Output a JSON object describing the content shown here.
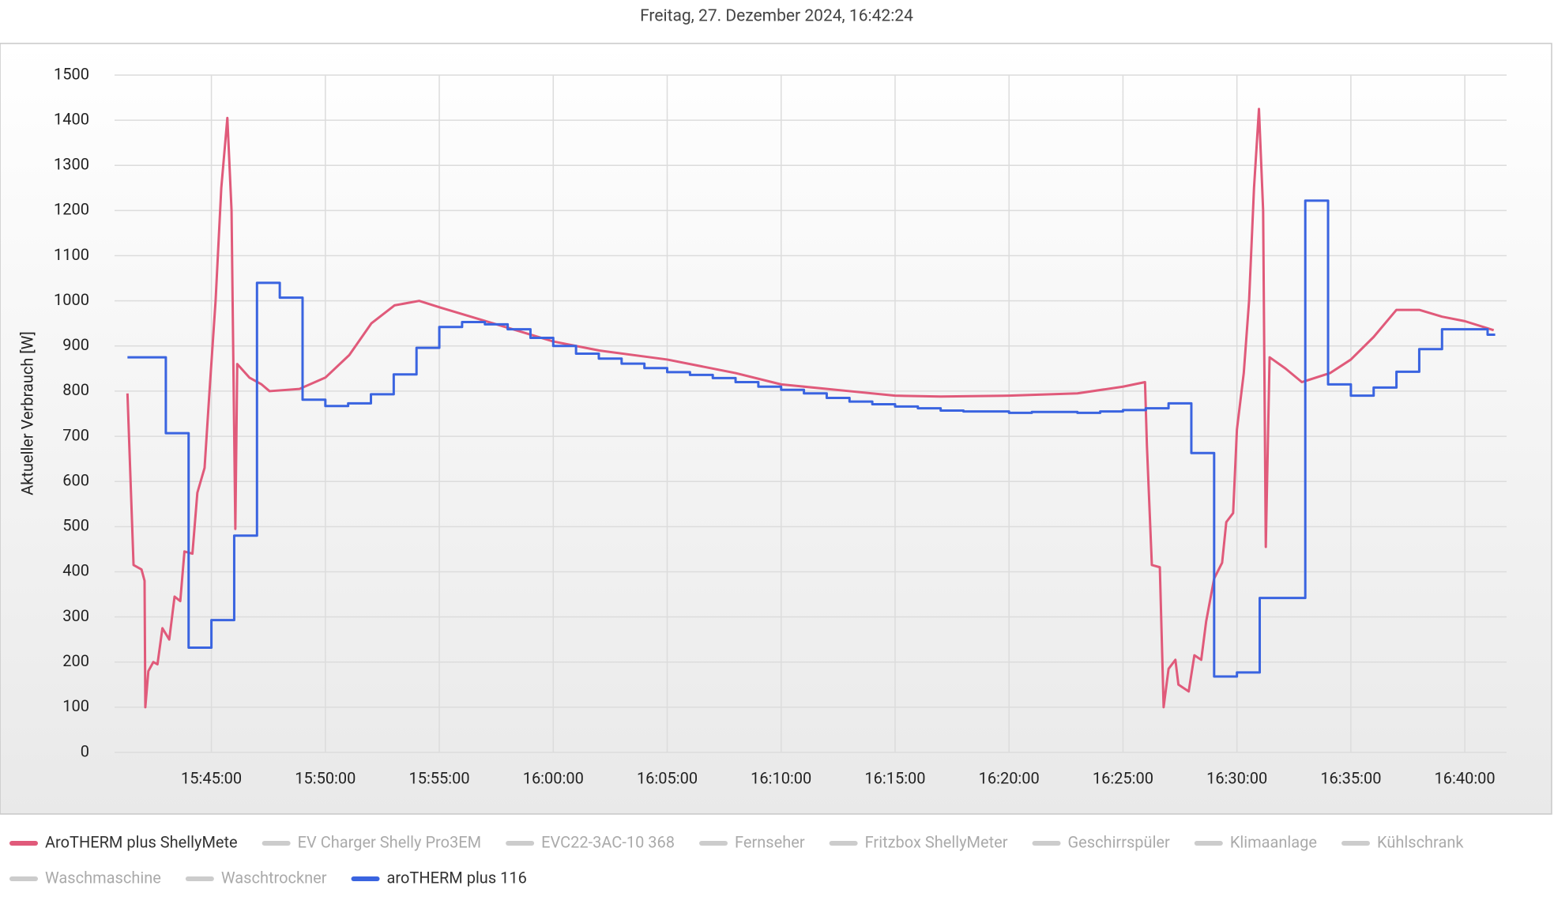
{
  "chart_data": {
    "type": "line",
    "title": "Freitag, 27. Dezember 2024, 16:42:24",
    "y_label": "Aktueller Verbrauch [W]",
    "xlim": [
      "15:40:45",
      "16:41:50"
    ],
    "xticks": [
      "15:45:00",
      "15:50:00",
      "15:55:00",
      "16:00:00",
      "16:05:00",
      "16:10:00",
      "16:15:00",
      "16:20:00",
      "16:25:00",
      "16:30:00",
      "16:35:00",
      "16:40:00"
    ],
    "ylim": [
      0,
      1500
    ],
    "yticks": [
      0,
      100,
      200,
      300,
      400,
      500,
      600,
      700,
      800,
      900,
      1000,
      1100,
      1200,
      1300,
      1400,
      1500
    ],
    "grid": true,
    "series": [
      {
        "name": "AroTHERM plus ShellyMete",
        "color": "#e05a7a",
        "step": false,
        "hidden": false,
        "x": [
          "15:41:19",
          "15:41:35",
          "15:41:56",
          "15:42:04",
          "15:42:06",
          "15:42:14",
          "15:42:27",
          "15:42:38",
          "15:42:51",
          "15:43:09",
          "15:43:23",
          "15:43:38",
          "15:43:49",
          "15:44:10",
          "15:44:23",
          "15:44:42",
          "15:44:55",
          "15:45:11",
          "15:45:26",
          "15:45:42",
          "15:45:53",
          "15:46:03",
          "15:46:08",
          "15:46:40",
          "15:47:12",
          "15:47:33",
          "15:48:52",
          "15:50:00",
          "15:51:03",
          "15:52:01",
          "15:53:02",
          "15:54:07",
          "15:55:03",
          "15:56:03",
          "15:58:02",
          "16:00:00",
          "16:02:01",
          "16:05:00",
          "16:08:00",
          "16:10:00",
          "16:13:00",
          "16:15:00",
          "16:17:00",
          "16:20:00",
          "16:23:00",
          "16:25:00",
          "16:25:58",
          "16:26:03",
          "16:26:16",
          "16:26:37",
          "16:26:47",
          "16:27:00",
          "16:27:18",
          "16:27:26",
          "16:27:53",
          "16:28:08",
          "16:28:26",
          "16:28:39",
          "16:29:00",
          "16:29:21",
          "16:29:32",
          "16:29:50",
          "16:30:00",
          "16:30:18",
          "16:30:32",
          "16:30:45",
          "16:30:58",
          "16:31:09",
          "16:31:16",
          "16:31:26",
          "16:32:08",
          "16:32:51",
          "16:34:05",
          "16:35:00",
          "16:36:00",
          "16:37:00",
          "16:38:00",
          "16:39:00",
          "16:40:00",
          "16:41:16"
        ],
        "values": [
          795,
          415,
          405,
          380,
          100,
          180,
          200,
          195,
          275,
          250,
          345,
          335,
          445,
          440,
          575,
          630,
          800,
          1000,
          1250,
          1405,
          1200,
          495,
          860,
          830,
          815,
          800,
          805,
          830,
          880,
          950,
          990,
          1000,
          985,
          970,
          940,
          910,
          890,
          870,
          840,
          815,
          800,
          790,
          788,
          790,
          795,
          810,
          820,
          680,
          415,
          410,
          100,
          185,
          205,
          150,
          135,
          215,
          205,
          290,
          385,
          420,
          510,
          530,
          715,
          840,
          1000,
          1250,
          1425,
          1200,
          455,
          875,
          850,
          820,
          840,
          870,
          920,
          980,
          980,
          965,
          955,
          935
        ]
      },
      {
        "name": "EV Charger Shelly Pro3EM",
        "color": "#cccccc",
        "hidden": true,
        "x": [],
        "values": []
      },
      {
        "name": "EVC22-3AC-10 368",
        "color": "#cccccc",
        "hidden": true,
        "x": [],
        "values": []
      },
      {
        "name": "Fernseher",
        "color": "#cccccc",
        "hidden": true,
        "x": [],
        "values": []
      },
      {
        "name": "Fritzbox ShellyMeter",
        "color": "#cccccc",
        "hidden": true,
        "x": [],
        "values": []
      },
      {
        "name": "Geschirrspüler",
        "color": "#cccccc",
        "hidden": true,
        "x": [],
        "values": []
      },
      {
        "name": "Klimaanlage",
        "color": "#cccccc",
        "hidden": true,
        "x": [],
        "values": []
      },
      {
        "name": "Kühlschrank",
        "color": "#cccccc",
        "hidden": true,
        "x": [],
        "values": []
      },
      {
        "name": "Waschmaschine",
        "color": "#cccccc",
        "hidden": true,
        "x": [],
        "values": []
      },
      {
        "name": "Waschtrockner",
        "color": "#cccccc",
        "hidden": true,
        "x": [],
        "values": []
      },
      {
        "name": "aroTHERM plus 116",
        "color": "#3a64e0",
        "step": true,
        "hidden": false,
        "x": [
          "15:41:19",
          "15:43:00",
          "15:44:00",
          "15:45:00",
          "15:46:00",
          "15:47:00",
          "15:48:00",
          "15:49:00",
          "15:50:00",
          "15:51:00",
          "15:52:00",
          "15:53:00",
          "15:54:00",
          "15:55:00",
          "15:56:00",
          "15:57:00",
          "15:58:00",
          "15:59:00",
          "16:00:00",
          "16:01:00",
          "16:02:00",
          "16:03:00",
          "16:04:00",
          "16:05:00",
          "16:06:00",
          "16:07:00",
          "16:08:00",
          "16:09:00",
          "16:10:00",
          "16:11:00",
          "16:12:00",
          "16:13:00",
          "16:14:00",
          "16:15:00",
          "16:16:00",
          "16:17:00",
          "16:18:00",
          "16:20:00",
          "16:21:00",
          "16:23:00",
          "16:24:00",
          "16:25:00",
          "16:26:00",
          "16:27:00",
          "16:28:00",
          "16:29:00",
          "16:30:00",
          "16:31:00",
          "16:33:00",
          "16:34:00",
          "16:35:00",
          "16:36:00",
          "16:37:00",
          "16:38:00",
          "16:39:00",
          "16:41:00",
          "16:41:20"
        ],
        "values": [
          875,
          707,
          232,
          293,
          480,
          1040,
          1007,
          781,
          767,
          773,
          793,
          837,
          896,
          942,
          953,
          948,
          937,
          918,
          900,
          883,
          872,
          861,
          851,
          842,
          836,
          829,
          820,
          810,
          803,
          795,
          785,
          777,
          771,
          766,
          762,
          757,
          755,
          752,
          754,
          752,
          755,
          758,
          762,
          773,
          663,
          168,
          177,
          342,
          1222,
          815,
          790,
          808,
          843,
          893,
          937,
          925,
          925
        ]
      }
    ]
  }
}
